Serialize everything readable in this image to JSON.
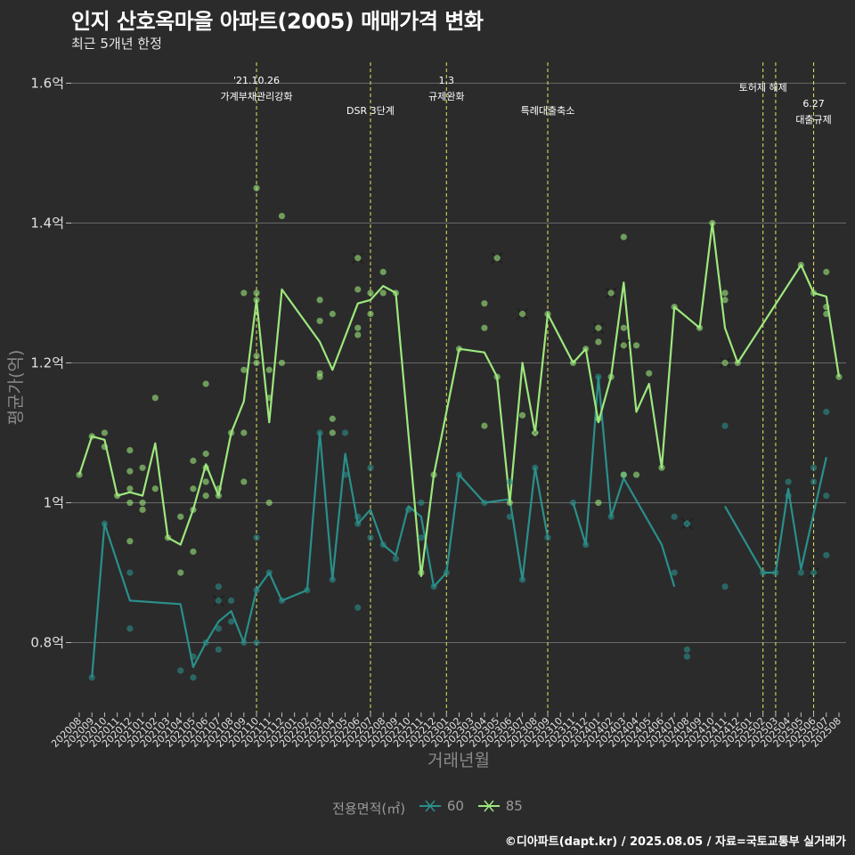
{
  "header": {
    "title": "인지 산호옥마을 아파트(2005) 매매가격 변화",
    "subtitle": "최근 5개년 한정"
  },
  "caption": "©디아파트(dapt.kr) / 2025.08.05 / 자료=국토교통부 실거래가",
  "legend": {
    "title": "전용면적(㎡)",
    "items": [
      {
        "label": "60",
        "color": "#2a8f8a"
      },
      {
        "label": "85",
        "color": "#9de87c"
      }
    ]
  },
  "chart_data": {
    "type": "line",
    "xlabel": "거래년월",
    "ylabel": "평균가(억)",
    "ylim": [
      0.7,
      1.64
    ],
    "yticks": [
      {
        "value": 0.8,
        "label": "0.8억"
      },
      {
        "value": 1.0,
        "label": "1억"
      },
      {
        "value": 1.2,
        "label": "1.2억"
      },
      {
        "value": 1.4,
        "label": "1.4억"
      },
      {
        "value": 1.6,
        "label": "1.6억"
      }
    ],
    "categories": [
      "202008",
      "202009",
      "202010",
      "202011",
      "202012",
      "202101",
      "202102",
      "202103",
      "202104",
      "202105",
      "202106",
      "202107",
      "202108",
      "202109",
      "202110",
      "202111",
      "202112",
      "202201",
      "202202",
      "202203",
      "202204",
      "202205",
      "202206",
      "202207",
      "202208",
      "202209",
      "202210",
      "202211",
      "202212",
      "202301",
      "202302",
      "202303",
      "202304",
      "202305",
      "202306",
      "202307",
      "202308",
      "202309",
      "202310",
      "202311",
      "202312",
      "202401",
      "202402",
      "202403",
      "202404",
      "202405",
      "202406",
      "202407",
      "202408",
      "202409",
      "202410",
      "202411",
      "202412",
      "202501",
      "202502",
      "202503",
      "202504",
      "202505",
      "202506",
      "202507",
      "202508"
    ],
    "events": [
      {
        "x": "202110",
        "line1": "'21.10.26",
        "line2": "가계부채관리강화",
        "level": 0
      },
      {
        "x": "202207",
        "line1": "",
        "line2": "DSR 3단계",
        "level": 1
      },
      {
        "x": "202301",
        "line1": "1.3",
        "line2": "규제완화",
        "level": 0
      },
      {
        "x": "202309",
        "line1": "",
        "line2": "특례대출축소",
        "level": 1
      },
      {
        "x": "202502",
        "line1": "",
        "line2": "토허제 해제",
        "level": 0
      },
      {
        "x": "202503",
        "line1": "",
        "line2": "",
        "level": 0
      },
      {
        "x": "202506",
        "line1": "6.27",
        "line2": "대출규제",
        "level": 1
      }
    ],
    "series": [
      {
        "name": "60",
        "color": "#2a8f8a",
        "line": [
          [
            "202009",
            0.75
          ],
          [
            "202010",
            0.97
          ],
          [
            "202012",
            0.86
          ],
          [
            "202104",
            0.855
          ],
          [
            "202105",
            0.765
          ],
          [
            "202106",
            0.8
          ],
          [
            "202107",
            0.83
          ],
          [
            "202108",
            0.845
          ],
          [
            "202109",
            0.8
          ],
          [
            "202110",
            0.875
          ],
          [
            "202111",
            0.9
          ],
          [
            "202112",
            0.86
          ],
          [
            "202202",
            0.875
          ],
          [
            "202203",
            1.1
          ],
          [
            "202204",
            0.89
          ],
          [
            "202205",
            1.07
          ],
          [
            "202206",
            0.97
          ],
          [
            "202207",
            0.99
          ],
          [
            "202208",
            0.94
          ],
          [
            "202209",
            0.925
          ],
          [
            "202210",
            0.995
          ],
          [
            "202211",
            0.98
          ],
          [
            "202212",
            0.88
          ],
          [
            "202301",
            0.9
          ],
          [
            "202302",
            1.04
          ],
          [
            "202304",
            1.0
          ],
          [
            "202306",
            1.005
          ],
          [
            "202307",
            0.89
          ],
          [
            "202308",
            1.05
          ],
          [
            "202309",
            0.95
          ]
        ],
        "line2": [
          [
            "202311",
            1.0
          ],
          [
            "202312",
            0.94
          ],
          [
            "202401",
            1.18
          ],
          [
            "202402",
            0.98
          ],
          [
            "202403",
            1.035
          ],
          [
            "202406",
            0.94
          ],
          [
            "202407",
            0.88
          ]
        ],
        "line3": [
          [
            "202411",
            0.995
          ],
          [
            "202502",
            0.9
          ],
          [
            "202503",
            0.9
          ],
          [
            "202504",
            1.02
          ],
          [
            "202505",
            0.905
          ],
          [
            "202507",
            1.065
          ]
        ],
        "points": [
          [
            "202009",
            0.75
          ],
          [
            "202010",
            0.97
          ],
          [
            "202012",
            0.9
          ],
          [
            "202012",
            0.82
          ],
          [
            "202104",
            0.76
          ],
          [
            "202105",
            0.78
          ],
          [
            "202105",
            0.75
          ],
          [
            "202106",
            0.8
          ],
          [
            "202107",
            0.82
          ],
          [
            "202107",
            0.79
          ],
          [
            "202107",
            0.88
          ],
          [
            "202108",
            0.83
          ],
          [
            "202108",
            0.86
          ],
          [
            "202109",
            0.8
          ],
          [
            "202110",
            0.95
          ],
          [
            "202110",
            0.8
          ],
          [
            "202110",
            0.875
          ],
          [
            "202111",
            0.9
          ],
          [
            "202112",
            0.86
          ],
          [
            "202202",
            0.875
          ],
          [
            "202203",
            1.1
          ],
          [
            "202204",
            0.89
          ],
          [
            "202205",
            1.1
          ],
          [
            "202205",
            1.04
          ],
          [
            "202206",
            0.97
          ],
          [
            "202206",
            0.85
          ],
          [
            "202206",
            0.98
          ],
          [
            "202207",
            1.05
          ],
          [
            "202207",
            0.95
          ],
          [
            "202208",
            0.94
          ],
          [
            "202209",
            0.92
          ],
          [
            "202210",
            0.99
          ],
          [
            "202211",
            1.0
          ],
          [
            "202211",
            0.95
          ],
          [
            "202212",
            0.88
          ],
          [
            "202301",
            0.9
          ],
          [
            "202302",
            1.04
          ],
          [
            "202304",
            1.0
          ],
          [
            "202306",
            1.03
          ],
          [
            "202306",
            0.98
          ],
          [
            "202307",
            0.89
          ],
          [
            "202308",
            1.05
          ],
          [
            "202309",
            0.95
          ],
          [
            "202311",
            1.0
          ],
          [
            "202312",
            0.94
          ],
          [
            "202401",
            1.18
          ],
          [
            "202402",
            0.98
          ],
          [
            "202403",
            1.04
          ],
          [
            "202407",
            0.98
          ],
          [
            "202407",
            0.9
          ],
          [
            "202408",
            0.79
          ],
          [
            "202408",
            0.78
          ],
          [
            "202408",
            0.97
          ],
          [
            "202411",
            1.11
          ],
          [
            "202411",
            0.88
          ],
          [
            "202502",
            0.9
          ],
          [
            "202503",
            0.9
          ],
          [
            "202504",
            1.03
          ],
          [
            "202504",
            1.01
          ],
          [
            "202505",
            0.9
          ],
          [
            "202506",
            1.03
          ],
          [
            "202506",
            1.05
          ],
          [
            "202507",
            1.13
          ],
          [
            "202507",
            1.01
          ],
          [
            "202507",
            0.925
          ]
        ],
        "xmarks": [
          [
            "202107",
            0.86
          ],
          [
            "202408",
            0.97
          ],
          [
            "202506",
            0.9
          ]
        ]
      },
      {
        "name": "85",
        "color": "#9de87c",
        "line": [
          [
            "202008",
            1.04
          ],
          [
            "202009",
            1.095
          ],
          [
            "202010",
            1.09
          ],
          [
            "202011",
            1.01
          ],
          [
            "202012",
            1.015
          ],
          [
            "202101",
            1.01
          ],
          [
            "202102",
            1.085
          ],
          [
            "202103",
            0.95
          ],
          [
            "202104",
            0.94
          ],
          [
            "202105",
            0.99
          ],
          [
            "202106",
            1.055
          ],
          [
            "202107",
            1.01
          ],
          [
            "202108",
            1.1
          ],
          [
            "202109",
            1.145
          ],
          [
            "202110",
            1.29
          ],
          [
            "202111",
            1.115
          ],
          [
            "202112",
            1.305
          ],
          [
            "202203",
            1.23
          ],
          [
            "202204",
            1.19
          ],
          [
            "202206",
            1.285
          ],
          [
            "202207",
            1.29
          ],
          [
            "202208",
            1.31
          ],
          [
            "202209",
            1.3
          ],
          [
            "202211",
            0.895
          ],
          [
            "202212",
            1.04
          ],
          [
            "202302",
            1.22
          ],
          [
            "202304",
            1.215
          ],
          [
            "202305",
            1.18
          ],
          [
            "202306",
            1.0
          ],
          [
            "202307",
            1.2
          ],
          [
            "202308",
            1.1
          ],
          [
            "202309",
            1.27
          ],
          [
            "202311",
            1.2
          ],
          [
            "202312",
            1.22
          ],
          [
            "202401",
            1.115
          ],
          [
            "202402",
            1.18
          ],
          [
            "202403",
            1.315
          ],
          [
            "202404",
            1.13
          ],
          [
            "202405",
            1.17
          ],
          [
            "202406",
            1.05
          ],
          [
            "202407",
            1.28
          ],
          [
            "202409",
            1.25
          ],
          [
            "202410",
            1.4
          ],
          [
            "202411",
            1.25
          ],
          [
            "202412",
            1.2
          ],
          [
            "202505",
            1.34
          ],
          [
            "202506",
            1.3
          ],
          [
            "202507",
            1.295
          ],
          [
            "202508",
            1.18
          ]
        ],
        "points": [
          [
            "202008",
            1.04
          ],
          [
            "202009",
            1.095
          ],
          [
            "202010",
            1.08
          ],
          [
            "202010",
            1.1
          ],
          [
            "202011",
            1.01
          ],
          [
            "202012",
            1.075
          ],
          [
            "202012",
            1.045
          ],
          [
            "202012",
            1.02
          ],
          [
            "202012",
            1.0
          ],
          [
            "202012",
            0.945
          ],
          [
            "202101",
            1.05
          ],
          [
            "202101",
            1.0
          ],
          [
            "202101",
            0.99
          ],
          [
            "202102",
            1.15
          ],
          [
            "202102",
            1.02
          ],
          [
            "202103",
            0.95
          ],
          [
            "202104",
            0.98
          ],
          [
            "202104",
            0.9
          ],
          [
            "202105",
            1.06
          ],
          [
            "202105",
            1.02
          ],
          [
            "202105",
            0.99
          ],
          [
            "202105",
            0.93
          ],
          [
            "202106",
            1.17
          ],
          [
            "202106",
            1.07
          ],
          [
            "202106",
            1.05
          ],
          [
            "202106",
            1.03
          ],
          [
            "202106",
            1.01
          ],
          [
            "202107",
            1.01
          ],
          [
            "202107",
            1.02
          ],
          [
            "202108",
            1.1
          ],
          [
            "202109",
            1.3
          ],
          [
            "202109",
            1.19
          ],
          [
            "202109",
            1.1
          ],
          [
            "202109",
            1.03
          ],
          [
            "202110",
            1.45
          ],
          [
            "202110",
            1.3
          ],
          [
            "202110",
            1.29
          ],
          [
            "202110",
            1.21
          ],
          [
            "202110",
            1.2
          ],
          [
            "202111",
            1.19
          ],
          [
            "202111",
            1.15
          ],
          [
            "202111",
            1.0
          ],
          [
            "202112",
            1.41
          ],
          [
            "202112",
            1.2
          ],
          [
            "202203",
            1.29
          ],
          [
            "202203",
            1.26
          ],
          [
            "202203",
            1.185
          ],
          [
            "202203",
            1.18
          ],
          [
            "202204",
            1.27
          ],
          [
            "202204",
            1.12
          ],
          [
            "202204",
            1.1
          ],
          [
            "202206",
            1.305
          ],
          [
            "202206",
            1.25
          ],
          [
            "202206",
            1.24
          ],
          [
            "202207",
            1.3
          ],
          [
            "202207",
            1.27
          ],
          [
            "202208",
            1.33
          ],
          [
            "202208",
            1.3
          ],
          [
            "202209",
            1.3
          ],
          [
            "202211",
            0.9
          ],
          [
            "202212",
            1.04
          ],
          [
            "202302",
            1.22
          ],
          [
            "202304",
            1.285
          ],
          [
            "202304",
            1.25
          ],
          [
            "202304",
            1.11
          ],
          [
            "202305",
            1.18
          ],
          [
            "202306",
            1.0
          ],
          [
            "202307",
            1.125
          ],
          [
            "202308",
            1.1
          ],
          [
            "202309",
            1.27
          ],
          [
            "202311",
            1.2
          ],
          [
            "202312",
            1.22
          ],
          [
            "202401",
            1.23
          ],
          [
            "202401",
            1.12
          ],
          [
            "202401",
            1.0
          ],
          [
            "202402",
            1.18
          ],
          [
            "202403",
            1.38
          ],
          [
            "202403",
            1.25
          ],
          [
            "202403",
            1.04
          ],
          [
            "202404",
            1.225
          ],
          [
            "202404",
            1.04
          ],
          [
            "202405",
            1.185
          ],
          [
            "202406",
            1.05
          ],
          [
            "202407",
            1.28
          ],
          [
            "202409",
            1.25
          ],
          [
            "202410",
            1.4
          ],
          [
            "202411",
            1.3
          ],
          [
            "202411",
            1.29
          ],
          [
            "202412",
            1.2
          ],
          [
            "202505",
            1.34
          ],
          [
            "202506",
            1.3
          ],
          [
            "202507",
            1.33
          ],
          [
            "202507",
            1.28
          ],
          [
            "202507",
            1.27
          ],
          [
            "202508",
            1.18
          ]
        ],
        "xmarks": [
          [
            "202206",
            1.35
          ],
          [
            "202305",
            1.35
          ],
          [
            "202307",
            1.27
          ],
          [
            "202308",
            1.1
          ],
          [
            "202401",
            1.25
          ],
          [
            "202402",
            1.3
          ],
          [
            "202403",
            1.225
          ],
          [
            "202411",
            1.2
          ]
        ]
      }
    ]
  }
}
